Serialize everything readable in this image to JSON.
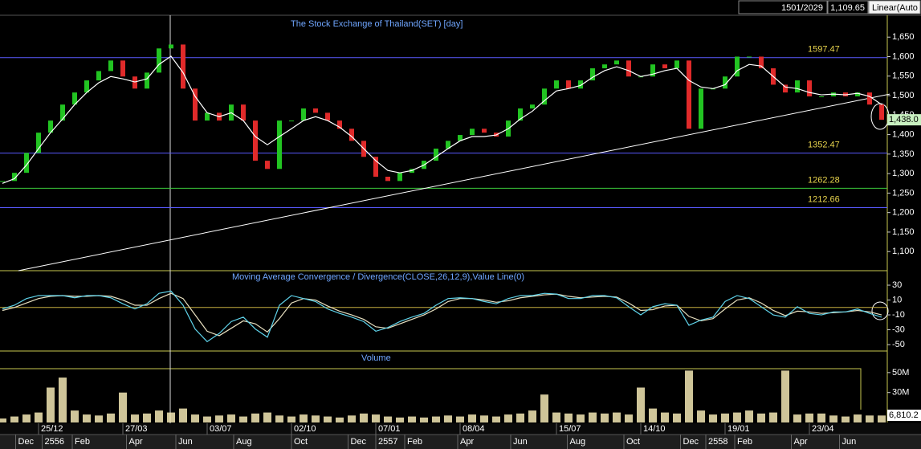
{
  "status": [
    "1501/2029",
    "1,109.65",
    "Linear(Auto"
  ],
  "chart_data": [
    {
      "type": "stock",
      "title": "The Stock Exchange of Thailand(SET) [day]",
      "ylim": [
        1051,
        1704
      ],
      "yticks": [
        {
          "value": 1100,
          "label": "1,100"
        },
        {
          "value": 1150,
          "label": "1,150"
        },
        {
          "value": 1200,
          "label": "1,200"
        },
        {
          "value": 1250,
          "label": "1,250"
        },
        {
          "value": 1300,
          "label": "1,300"
        },
        {
          "value": 1350,
          "label": "1,350"
        },
        {
          "value": 1400,
          "label": "1,400"
        },
        {
          "value": 1450,
          "label": "1,450"
        },
        {
          "value": 1500,
          "label": "1,500"
        },
        {
          "value": 1550,
          "label": "1,550"
        },
        {
          "value": 1600,
          "label": "1,600"
        },
        {
          "value": 1650,
          "label": "1,650"
        }
      ],
      "series": [
        {
          "color": "#22c422",
          "down_color": "#e02a2a",
          "values": [
            1281,
            1302,
            1353,
            1405,
            1436,
            1477,
            1508,
            1539,
            1563,
            1590,
            1549,
            1518,
            1559,
            1621,
            1631,
            1518,
            1436,
            1456,
            1436,
            1477,
            1436,
            1333,
            1312,
            1436,
            1436,
            1467,
            1456,
            1436,
            1415,
            1384,
            1343,
            1292,
            1281,
            1302,
            1312,
            1333,
            1364,
            1384,
            1399,
            1415,
            1405,
            1395,
            1436,
            1467,
            1477,
            1518,
            1539,
            1518,
            1539,
            1570,
            1580,
            1590,
            1549,
            1549,
            1580,
            1570,
            1590,
            1415,
            1518,
            1518,
            1549,
            1600,
            1600,
            1570,
            1528,
            1508,
            1539,
            1498,
            1498,
            1508,
            1498,
            1508,
            1477,
            1438
          ]
        },
        {
          "color": "#ffffff",
          "values": [
            1275,
            1287,
            1322,
            1364,
            1405,
            1440,
            1477,
            1508,
            1533,
            1549,
            1543,
            1535,
            1543,
            1580,
            1601,
            1559,
            1498,
            1456,
            1446,
            1456,
            1436,
            1395,
            1374,
            1395,
            1415,
            1436,
            1446,
            1436,
            1419,
            1395,
            1364,
            1333,
            1308,
            1302,
            1308,
            1322,
            1343,
            1364,
            1384,
            1395,
            1395,
            1399,
            1415,
            1440,
            1460,
            1487,
            1512,
            1518,
            1526,
            1547,
            1564,
            1574,
            1564,
            1549,
            1555,
            1564,
            1570,
            1539,
            1522,
            1518,
            1528,
            1564,
            1580,
            1576,
            1549,
            1522,
            1518,
            1508,
            1502,
            1504,
            1502,
            1506,
            1498,
            1477
          ]
        }
      ],
      "levels": [
        {
          "value": 1597.47,
          "color": "#5a5aff"
        },
        {
          "value": 1352.47,
          "color": "#5a5aff"
        },
        {
          "value": 1262.28,
          "color": "#3ccc3c"
        },
        {
          "value": 1212.66,
          "color": "#5a5aff"
        }
      ],
      "trendline": {
        "x": [
          1.33,
          73.67
        ],
        "y": [
          1051,
          1504
        ],
        "color": "#ffffff"
      },
      "last_value": {
        "value": 1438.0,
        "label": "1,438.0"
      }
    },
    {
      "type": "macd",
      "title": "Moving Average Convergence / Divergence(CLOSE,26,12,9),Value Line(0)",
      "ylim": [
        -58.6,
        48.4
      ],
      "yticks": [
        30,
        10,
        -10,
        -30,
        -50
      ],
      "value_line": 0,
      "series": [
        {
          "color": "#5fd3ea",
          "values": [
            -2,
            3,
            12,
            16,
            16,
            16,
            13,
            16,
            16,
            13,
            5,
            -2,
            5,
            19,
            22,
            3,
            -29,
            -46,
            -35,
            -19,
            -13,
            -29,
            -40,
            3,
            16,
            12,
            8,
            -2,
            -8,
            -13,
            -19,
            -32,
            -27,
            -19,
            -13,
            -8,
            3,
            12,
            13,
            12,
            8,
            5,
            12,
            16,
            16,
            19,
            18,
            12,
            12,
            16,
            16,
            13,
            1,
            -10,
            1,
            5,
            3,
            -24,
            -17,
            -13,
            8,
            16,
            12,
            1,
            -10,
            -13,
            1,
            -8,
            -10,
            -6,
            -6,
            -2,
            -8,
            -13
          ]
        },
        {
          "color": "#e8e0c0",
          "values": [
            -4,
            0,
            6,
            12,
            15,
            16,
            15,
            15,
            16,
            15,
            10,
            3,
            3,
            12,
            19,
            12,
            -10,
            -32,
            -38,
            -28,
            -18,
            -22,
            -33,
            -15,
            6,
            12,
            10,
            2,
            -5,
            -10,
            -16,
            -26,
            -28,
            -22,
            -16,
            -10,
            -2,
            8,
            12,
            12,
            10,
            7,
            9,
            13,
            15,
            17,
            18,
            15,
            13,
            14,
            15,
            14,
            6,
            -4,
            -3,
            2,
            3,
            -12,
            -18,
            -15,
            -2,
            10,
            13,
            6,
            -4,
            -11,
            -5,
            -6,
            -8,
            -7,
            -6,
            -4,
            -6,
            -10
          ]
        }
      ]
    },
    {
      "type": "volume",
      "title": "Volume",
      "ylim": [
        0,
        70.8
      ],
      "yticks": [
        {
          "value": 50,
          "label": "50M"
        },
        {
          "value": 30,
          "label": "30M"
        }
      ],
      "color": "#f3e7b4",
      "values": [
        4,
        6,
        8,
        10,
        35,
        45,
        12,
        8,
        7,
        9,
        30,
        8,
        9,
        12,
        10,
        14,
        8,
        6,
        7,
        8,
        6,
        9,
        10,
        7,
        6,
        8,
        7,
        6,
        5,
        7,
        9,
        8,
        6,
        5,
        6,
        5,
        6,
        7,
        6,
        8,
        7,
        6,
        8,
        9,
        12,
        28,
        10,
        9,
        8,
        10,
        9,
        10,
        8,
        35,
        14,
        10,
        9,
        52,
        12,
        8,
        9,
        10,
        12,
        9,
        10,
        52,
        8,
        9,
        9,
        7,
        6,
        8,
        7,
        7
      ],
      "last_label": "6,810.2",
      "xticks": [
        {
          "value": 3,
          "label": "25/12"
        },
        {
          "value": 10,
          "label": "27/03"
        },
        {
          "value": 17,
          "label": "03/07"
        },
        {
          "value": 24,
          "label": "02/10"
        },
        {
          "value": 31,
          "label": "07/01"
        },
        {
          "value": 38,
          "label": "08/04"
        },
        {
          "value": 46,
          "label": "15/07"
        },
        {
          "value": 53,
          "label": "14/10"
        },
        {
          "value": 60,
          "label": "19/01"
        },
        {
          "value": 67,
          "label": "23/04"
        }
      ],
      "xticks_secondary": [
        {
          "value": 1.1,
          "label": "Dec"
        },
        {
          "value": 3.3,
          "label": "2556"
        },
        {
          "value": 5.8,
          "label": "Feb"
        },
        {
          "value": 10.3,
          "label": "Apr"
        },
        {
          "value": 14.4,
          "label": "Jun"
        },
        {
          "value": 19.2,
          "label": "Aug"
        },
        {
          "value": 24,
          "label": "Oct"
        },
        {
          "value": 28.7,
          "label": "Dec"
        },
        {
          "value": 31,
          "label": "2557"
        },
        {
          "value": 33.4,
          "label": "Feb"
        },
        {
          "value": 37.8,
          "label": "Apr"
        },
        {
          "value": 42.2,
          "label": "Jun"
        },
        {
          "value": 46.9,
          "label": "Aug"
        },
        {
          "value": 51.6,
          "label": "Oct"
        },
        {
          "value": 56.3,
          "label": "Dec"
        },
        {
          "value": 58.4,
          "label": "2558"
        },
        {
          "value": 60.8,
          "label": "Feb"
        },
        {
          "value": 65.5,
          "label": "Apr"
        },
        {
          "value": 69.5,
          "label": "Jun"
        }
      ]
    }
  ]
}
